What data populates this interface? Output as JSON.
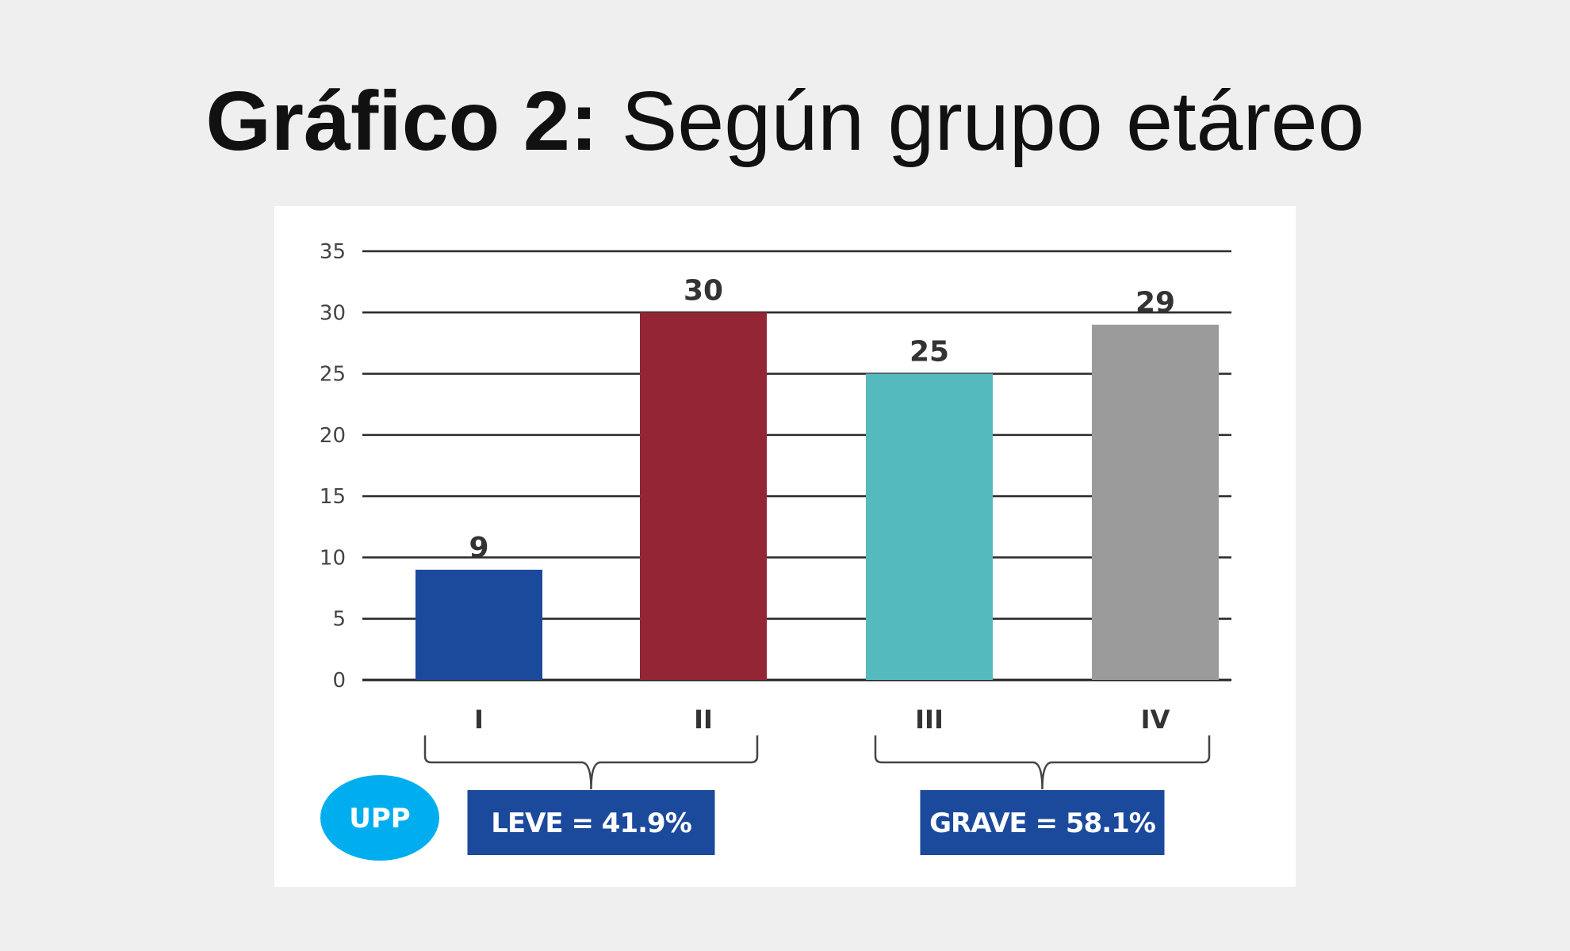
{
  "slide": {
    "title_lead": "Gráfico 2:",
    "title_rest": "Según grupo etáreo"
  },
  "chart_data": {
    "type": "bar",
    "categories": [
      "I",
      "II",
      "III",
      "IV"
    ],
    "values": [
      9,
      30,
      25,
      29
    ],
    "colors": [
      "#1b4a9c",
      "#932535",
      "#55babe",
      "#9b9b9b"
    ],
    "ylim": [
      0,
      35
    ],
    "yticks": [
      0,
      5,
      10,
      15,
      20,
      25,
      30,
      35
    ],
    "grid": true,
    "data_labels": true,
    "groups": [
      {
        "label": "LEVE = 41.9%",
        "categories": [
          "I",
          "II"
        ]
      },
      {
        "label": "GRAVE = 58.1%",
        "categories": [
          "III",
          "IV"
        ]
      }
    ],
    "badge": "UPP",
    "group_box_color": "#1b4a9c",
    "badge_color": "#00aeef"
  }
}
